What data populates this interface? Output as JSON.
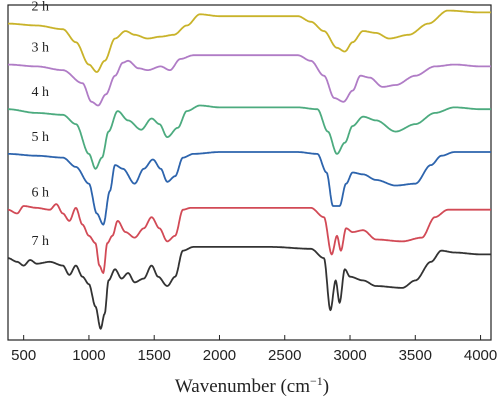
{
  "chart_data": {
    "type": "line",
    "xlabel": "Wavenumber (cm",
    "xlabel_superscript": "−1",
    "xlabel_close": ")",
    "ylabel": "",
    "xlim": [
      380,
      4080
    ],
    "xticks": [
      500,
      1000,
      1500,
      2000,
      2500,
      3000,
      3500,
      4000
    ],
    "grid": false,
    "legend": "labels-on-curves",
    "series": [
      {
        "name": "2 h",
        "color": "#c9b32a",
        "baseline": 6.3,
        "points": [
          [
            380,
            0.0
          ],
          [
            600,
            -0.05
          ],
          [
            800,
            -0.15
          ],
          [
            900,
            -0.5
          ],
          [
            1000,
            -1.1
          ],
          [
            1060,
            -1.3
          ],
          [
            1120,
            -1.0
          ],
          [
            1200,
            -0.4
          ],
          [
            1280,
            -0.2
          ],
          [
            1350,
            -0.3
          ],
          [
            1450,
            -0.4
          ],
          [
            1550,
            -0.35
          ],
          [
            1650,
            -0.3
          ],
          [
            1750,
            -0.05
          ],
          [
            1850,
            0.25
          ],
          [
            2000,
            0.2
          ],
          [
            2300,
            0.2
          ],
          [
            2600,
            0.2
          ],
          [
            2700,
            0.05
          ],
          [
            2800,
            -0.2
          ],
          [
            2900,
            -0.65
          ],
          [
            2960,
            -0.75
          ],
          [
            3020,
            -0.5
          ],
          [
            3100,
            -0.2
          ],
          [
            3200,
            -0.25
          ],
          [
            3300,
            -0.4
          ],
          [
            3450,
            -0.3
          ],
          [
            3600,
            0.0
          ],
          [
            3750,
            0.35
          ],
          [
            4000,
            0.3
          ]
        ]
      },
      {
        "name": "3 h",
        "color": "#b07cc6",
        "baseline": 5.2,
        "points": [
          [
            380,
            0.0
          ],
          [
            600,
            -0.05
          ],
          [
            800,
            -0.15
          ],
          [
            950,
            -0.5
          ],
          [
            1020,
            -1.0
          ],
          [
            1070,
            -1.1
          ],
          [
            1130,
            -0.8
          ],
          [
            1200,
            -0.3
          ],
          [
            1260,
            0.05
          ],
          [
            1300,
            0.1
          ],
          [
            1380,
            -0.1
          ],
          [
            1450,
            -0.15
          ],
          [
            1550,
            -0.05
          ],
          [
            1620,
            -0.15
          ],
          [
            1700,
            0.15
          ],
          [
            1800,
            0.25
          ],
          [
            2000,
            0.25
          ],
          [
            2300,
            0.25
          ],
          [
            2600,
            0.25
          ],
          [
            2700,
            0.1
          ],
          [
            2800,
            -0.3
          ],
          [
            2880,
            -0.9
          ],
          [
            2950,
            -1.0
          ],
          [
            3020,
            -0.7
          ],
          [
            3080,
            -0.3
          ],
          [
            3150,
            -0.35
          ],
          [
            3250,
            -0.6
          ],
          [
            3350,
            -0.55
          ],
          [
            3500,
            -0.3
          ],
          [
            3650,
            -0.05
          ],
          [
            3800,
            0.0
          ],
          [
            4000,
            -0.05
          ]
        ]
      },
      {
        "name": "4 h",
        "color": "#4cab7f",
        "baseline": 4.0,
        "points": [
          [
            380,
            0.0
          ],
          [
            600,
            -0.1
          ],
          [
            800,
            -0.15
          ],
          [
            900,
            -0.4
          ],
          [
            1000,
            -1.2
          ],
          [
            1050,
            -1.6
          ],
          [
            1100,
            -1.3
          ],
          [
            1150,
            -0.6
          ],
          [
            1220,
            -0.05
          ],
          [
            1300,
            -0.3
          ],
          [
            1400,
            -0.55
          ],
          [
            1480,
            -0.25
          ],
          [
            1540,
            -0.4
          ],
          [
            1600,
            -0.75
          ],
          [
            1680,
            -0.5
          ],
          [
            1750,
            -0.05
          ],
          [
            1850,
            0.1
          ],
          [
            2000,
            0.05
          ],
          [
            2300,
            0.05
          ],
          [
            2600,
            0.05
          ],
          [
            2750,
            0.0
          ],
          [
            2830,
            -0.6
          ],
          [
            2900,
            -1.2
          ],
          [
            2960,
            -0.9
          ],
          [
            3020,
            -0.45
          ],
          [
            3100,
            -0.2
          ],
          [
            3200,
            -0.3
          ],
          [
            3350,
            -0.6
          ],
          [
            3500,
            -0.4
          ],
          [
            3650,
            -0.1
          ],
          [
            3800,
            0.05
          ],
          [
            4000,
            0.0
          ]
        ]
      },
      {
        "name": "5 h",
        "color": "#2d64ad",
        "baseline": 2.8,
        "points": [
          [
            380,
            0.0
          ],
          [
            600,
            -0.05
          ],
          [
            800,
            -0.1
          ],
          [
            900,
            -0.35
          ],
          [
            1000,
            -0.8
          ],
          [
            1060,
            -1.6
          ],
          [
            1110,
            -1.9
          ],
          [
            1160,
            -1.0
          ],
          [
            1200,
            -0.3
          ],
          [
            1260,
            -0.4
          ],
          [
            1350,
            -0.8
          ],
          [
            1420,
            -0.4
          ],
          [
            1490,
            -0.15
          ],
          [
            1550,
            -0.4
          ],
          [
            1600,
            -0.75
          ],
          [
            1660,
            -0.6
          ],
          [
            1720,
            -0.1
          ],
          [
            1800,
            0.0
          ],
          [
            2000,
            0.05
          ],
          [
            2300,
            0.05
          ],
          [
            2600,
            0.05
          ],
          [
            2750,
            0.0
          ],
          [
            2820,
            -0.5
          ],
          [
            2870,
            -1.4
          ],
          [
            2920,
            -1.4
          ],
          [
            2970,
            -0.8
          ],
          [
            3020,
            -0.5
          ],
          [
            3100,
            -0.55
          ],
          [
            3200,
            -0.7
          ],
          [
            3350,
            -0.85
          ],
          [
            3500,
            -0.8
          ],
          [
            3620,
            -0.3
          ],
          [
            3700,
            -0.05
          ],
          [
            3800,
            0.05
          ],
          [
            4000,
            0.05
          ]
        ]
      },
      {
        "name": "6 h",
        "color": "#d24a56",
        "baseline": 1.3,
        "points": [
          [
            380,
            0.0
          ],
          [
            450,
            -0.1
          ],
          [
            500,
            0.1
          ],
          [
            600,
            0.05
          ],
          [
            700,
            0.0
          ],
          [
            750,
            0.15
          ],
          [
            800,
            -0.1
          ],
          [
            850,
            -0.3
          ],
          [
            900,
            0.05
          ],
          [
            950,
            -0.4
          ],
          [
            1000,
            -0.7
          ],
          [
            1050,
            -0.9
          ],
          [
            1080,
            -1.5
          ],
          [
            1110,
            -1.7
          ],
          [
            1140,
            -0.9
          ],
          [
            1180,
            -0.7
          ],
          [
            1220,
            -0.3
          ],
          [
            1280,
            -0.6
          ],
          [
            1350,
            -0.75
          ],
          [
            1420,
            -0.5
          ],
          [
            1480,
            -0.2
          ],
          [
            1540,
            -0.5
          ],
          [
            1600,
            -0.85
          ],
          [
            1660,
            -0.7
          ],
          [
            1720,
            0.0
          ],
          [
            1780,
            0.05
          ],
          [
            2000,
            0.05
          ],
          [
            2400,
            0.05
          ],
          [
            2700,
            0.05
          ],
          [
            2800,
            -0.2
          ],
          [
            2860,
            -1.2
          ],
          [
            2900,
            -0.7
          ],
          [
            2930,
            -1.1
          ],
          [
            2970,
            -0.5
          ],
          [
            3020,
            -0.6
          ],
          [
            3100,
            -0.55
          ],
          [
            3200,
            -0.8
          ],
          [
            3400,
            -0.85
          ],
          [
            3550,
            -0.75
          ],
          [
            3650,
            -0.2
          ],
          [
            3750,
            0.0
          ],
          [
            4000,
            0.0
          ]
        ]
      },
      {
        "name": "7 h",
        "color": "#333333",
        "baseline": 0.0,
        "points": [
          [
            380,
            0.0
          ],
          [
            450,
            -0.1
          ],
          [
            500,
            -0.2
          ],
          [
            550,
            -0.05
          ],
          [
            600,
            -0.15
          ],
          [
            700,
            -0.1
          ],
          [
            800,
            -0.2
          ],
          [
            850,
            -0.45
          ],
          [
            900,
            -0.2
          ],
          [
            950,
            -0.5
          ],
          [
            1000,
            -0.7
          ],
          [
            1050,
            -1.3
          ],
          [
            1090,
            -1.9
          ],
          [
            1120,
            -1.5
          ],
          [
            1150,
            -0.6
          ],
          [
            1200,
            -0.3
          ],
          [
            1250,
            -0.55
          ],
          [
            1300,
            -0.4
          ],
          [
            1350,
            -0.65
          ],
          [
            1420,
            -0.55
          ],
          [
            1480,
            -0.2
          ],
          [
            1530,
            -0.5
          ],
          [
            1600,
            -0.75
          ],
          [
            1660,
            -0.5
          ],
          [
            1720,
            0.2
          ],
          [
            1800,
            0.3
          ],
          [
            2000,
            0.3
          ],
          [
            2400,
            0.3
          ],
          [
            2700,
            0.25
          ],
          [
            2800,
            0.0
          ],
          [
            2850,
            -1.4
          ],
          [
            2890,
            -0.6
          ],
          [
            2920,
            -1.2
          ],
          [
            2960,
            -0.3
          ],
          [
            3000,
            -0.5
          ],
          [
            3100,
            -0.6
          ],
          [
            3200,
            -0.75
          ],
          [
            3400,
            -0.8
          ],
          [
            3500,
            -0.6
          ],
          [
            3620,
            -0.1
          ],
          [
            3700,
            0.2
          ],
          [
            3800,
            0.15
          ],
          [
            4000,
            0.1
          ]
        ]
      }
    ]
  }
}
